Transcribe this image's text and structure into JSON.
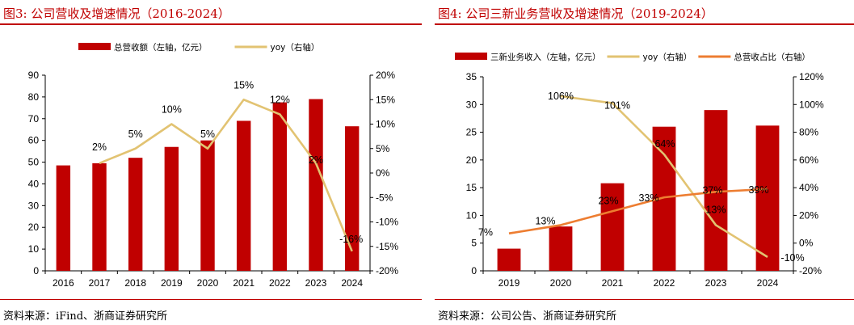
{
  "left": {
    "figure_title": "图3:   公司营收及增速情况（2016-2024）",
    "source": "资料来源：iFind、浙商证券研究所",
    "chart_data": {
      "type": "bar",
      "categories": [
        "2016",
        "2017",
        "2018",
        "2019",
        "2020",
        "2021",
        "2022",
        "2023",
        "2024"
      ],
      "series": [
        {
          "name": "总营收额（左轴，亿元）",
          "kind": "bar",
          "axis": "left",
          "color": "#C00000",
          "values": [
            48.5,
            49.5,
            52,
            57,
            60,
            69,
            77.5,
            79,
            66.5
          ],
          "labels": []
        },
        {
          "name": "yoy（右轴）",
          "kind": "line",
          "axis": "right",
          "color": "#E2C372",
          "values": [
            null,
            2,
            5,
            10,
            5,
            15,
            12,
            2,
            -16
          ],
          "labels": [
            "",
            "2%",
            "5%",
            "10%",
            "5%",
            "15%",
            "12%",
            "2%",
            "-16%"
          ]
        }
      ],
      "left_axis": {
        "min": 0,
        "max": 90,
        "step": 10,
        "ticks": [
          "0",
          "10",
          "20",
          "30",
          "40",
          "50",
          "60",
          "70",
          "80",
          "90"
        ]
      },
      "right_axis": {
        "min": -20,
        "max": 20,
        "step": 5,
        "ticks": [
          "-20%",
          "-15%",
          "-10%",
          "-5%",
          "0%",
          "5%",
          "10%",
          "15%",
          "20%"
        ]
      },
      "grid": false,
      "legend": "top"
    }
  },
  "right": {
    "figure_title": "图4:   公司三新业务营收及增速情况（2019-2024）",
    "source": "资料来源：公司公告、浙商证券研究所",
    "chart_data": {
      "type": "bar",
      "categories": [
        "2019",
        "2020",
        "2021",
        "2022",
        "2023",
        "2024"
      ],
      "series": [
        {
          "name": "三新业务收入（左轴，亿元）",
          "kind": "bar",
          "axis": "left",
          "color": "#C00000",
          "values": [
            4,
            8,
            15.8,
            26,
            29,
            26.2
          ],
          "labels": []
        },
        {
          "name": "yoy（右轴）",
          "kind": "line",
          "axis": "right",
          "color": "#E2C372",
          "values": [
            null,
            106,
            101,
            64,
            13,
            -10
          ],
          "labels": [
            "",
            "106%",
            "101%",
            "64%",
            "13%",
            "-10%"
          ]
        },
        {
          "name": "总营收占比（右轴）",
          "kind": "line",
          "axis": "right",
          "color": "#ED7D31",
          "values": [
            7,
            13,
            23,
            33,
            37,
            39
          ],
          "labels": [
            "7%",
            "13%",
            "23%",
            "33%",
            "37%",
            "39%"
          ]
        }
      ],
      "left_axis": {
        "min": 0,
        "max": 35,
        "step": 5,
        "ticks": [
          "0",
          "5",
          "10",
          "15",
          "20",
          "25",
          "30",
          "35"
        ]
      },
      "right_axis": {
        "min": -20,
        "max": 120,
        "step": 20,
        "ticks": [
          "-20%",
          "0%",
          "20%",
          "40%",
          "60%",
          "80%",
          "100%",
          "120%"
        ]
      },
      "grid": false,
      "legend": "top"
    }
  }
}
